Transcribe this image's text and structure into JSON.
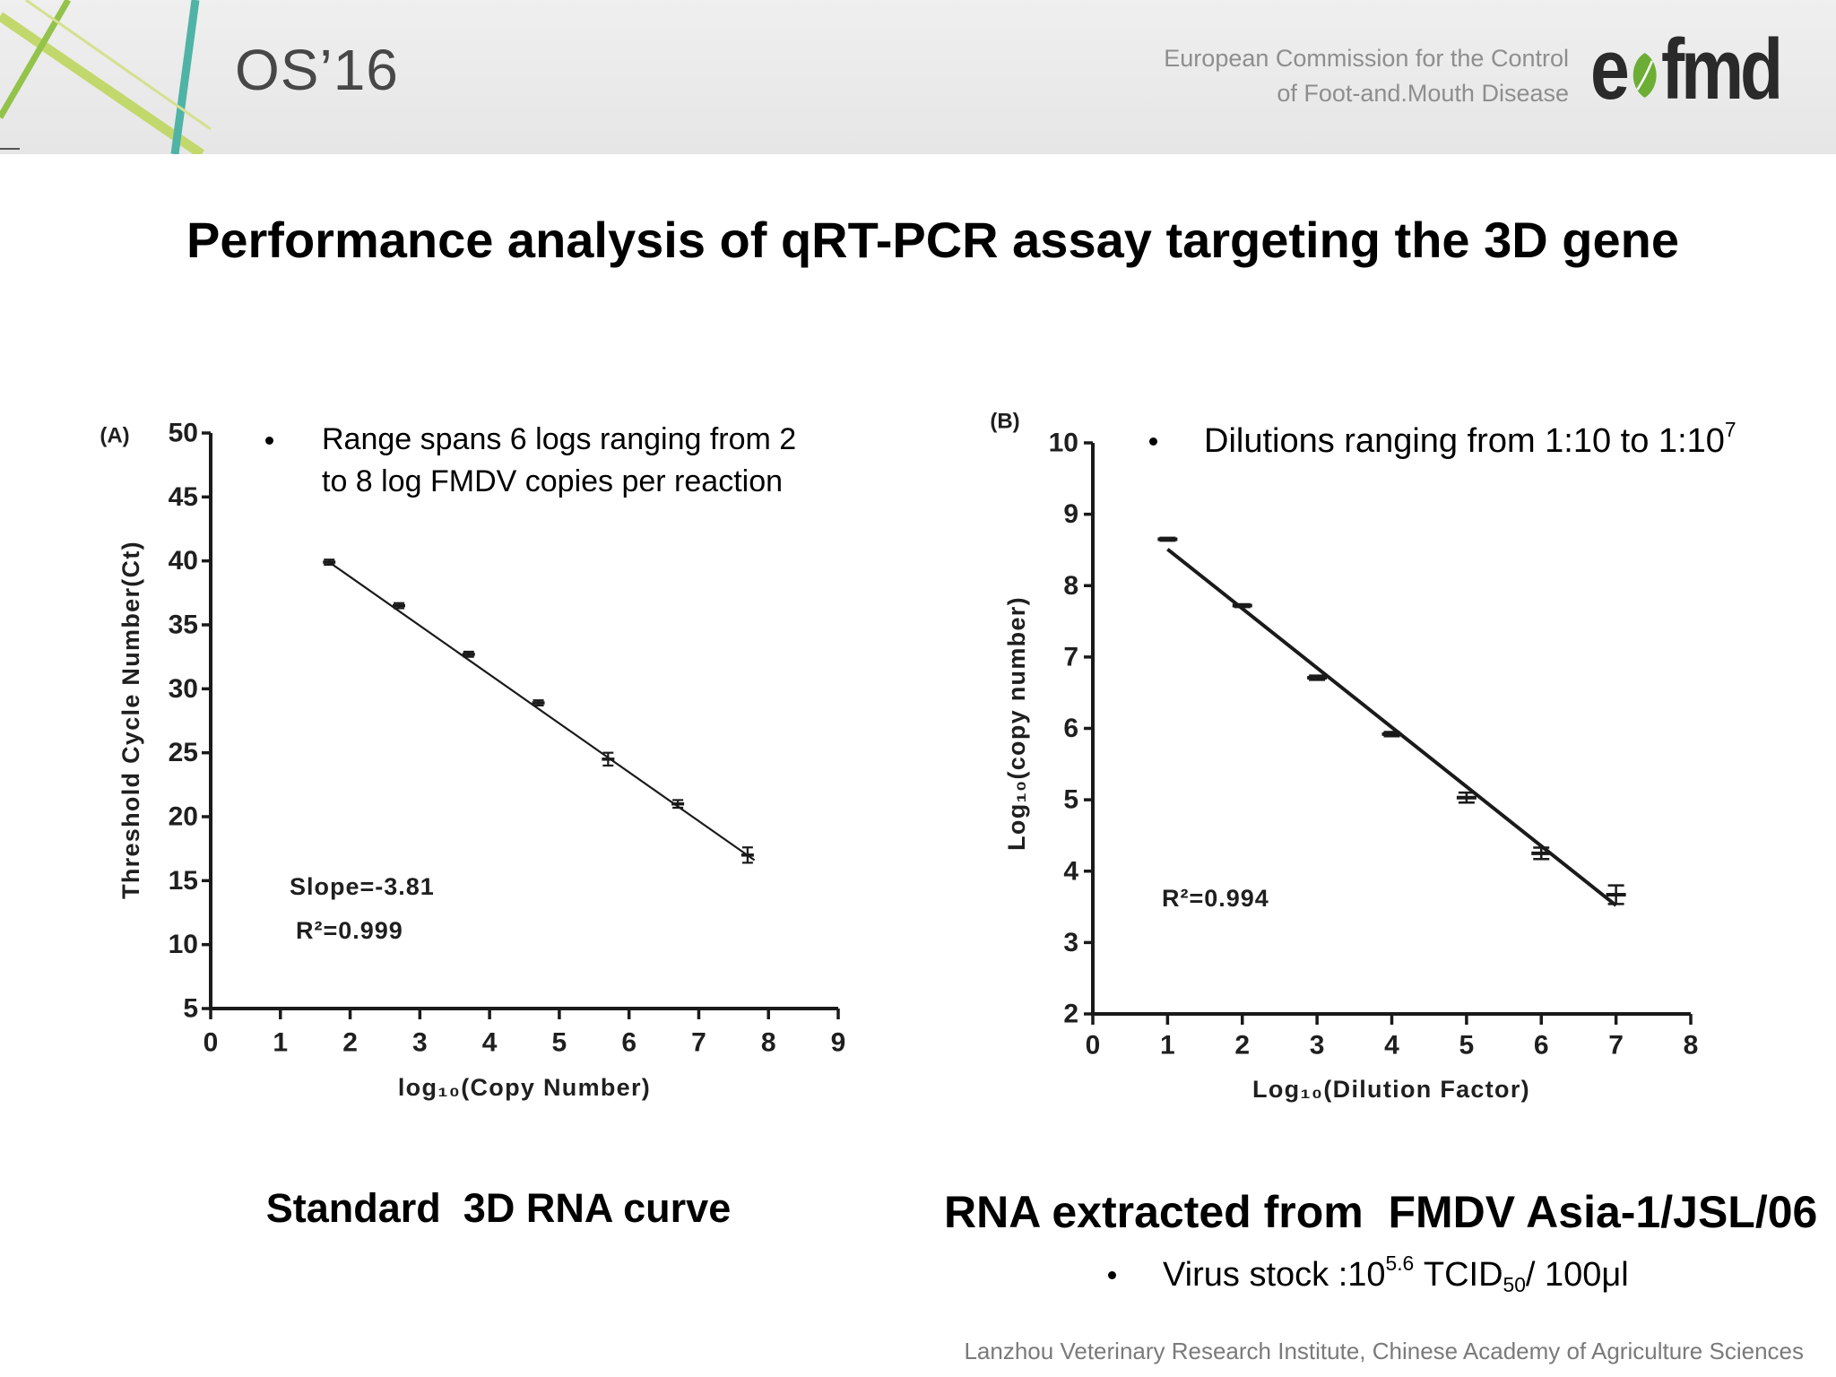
{
  "header": {
    "event": "OS’16",
    "org_line1": "European Commission for the Control",
    "org_line2": "of Foot-and.Mouth Disease",
    "logo": {
      "prefix": "e",
      "suffix": "fmd",
      "leaf_color": "#6cae35",
      "text_color": "#2a2a2a"
    },
    "decoration_colors": [
      "#c3d86c",
      "#93c34a",
      "#4fb3a6",
      "#d5e08e"
    ]
  },
  "title": "Performance analysis of qRT-PCR assay targeting the 3D gene",
  "panel_a": {
    "bullet_lines": [
      "Range spans 6 logs ranging from 2",
      "to 8 log FMDV copies per reaction"
    ],
    "caption": "Standard  3D RNA curve"
  },
  "panel_b": {
    "bullet": {
      "text": "Dilutions ranging from 1:10 to 1:10",
      "sup": "7"
    },
    "caption": "RNA extracted from  FMDV Asia-1/JSL/06",
    "note": {
      "text": "Virus stock :10",
      "sup": "5.6",
      "unit": "TCID",
      "sub": "50",
      "tail": "/ 100μl"
    }
  },
  "footer": "Lanzhou Veterinary Research Institute, Chinese Academy of Agriculture Sciences",
  "chart_data": [
    {
      "panel": "(A)",
      "type": "scatter",
      "xlabel": "log₁₀(Copy Number)",
      "ylabel": "Threshold Cycle Number(Ct)",
      "xlim": [
        0,
        9
      ],
      "ylim": [
        5,
        50
      ],
      "xticks": [
        0,
        1,
        2,
        3,
        4,
        5,
        6,
        7,
        8,
        9
      ],
      "yticks": [
        5,
        10,
        15,
        20,
        25,
        30,
        35,
        40,
        45,
        50
      ],
      "series": [
        {
          "x": [
            1.7,
            2.7,
            3.7,
            4.7,
            5.7,
            6.7,
            7.7
          ],
          "y": [
            39.9,
            36.5,
            32.7,
            28.9,
            24.5,
            21.0,
            17.0
          ],
          "error": [
            0.2,
            0.2,
            0.2,
            0.2,
            0.5,
            0.3,
            0.6
          ]
        }
      ],
      "fit_line": {
        "x": [
          1.7,
          7.8
        ],
        "y": [
          39.9,
          16.6
        ]
      },
      "annotations": [
        "Slope=-3.81",
        "R²=0.999"
      ],
      "grid": false,
      "color": "#1a1a1a"
    },
    {
      "panel": "(B)",
      "type": "scatter",
      "xlabel": "Log₁₀(Dilution Factor)",
      "ylabel": "Log₁₀(copy number)",
      "xlim": [
        0,
        8
      ],
      "ylim": [
        2,
        10
      ],
      "xticks": [
        0,
        1,
        2,
        3,
        4,
        5,
        6,
        7,
        8
      ],
      "yticks": [
        2,
        3,
        4,
        5,
        6,
        7,
        8,
        9,
        10
      ],
      "series": [
        {
          "x": [
            1,
            2,
            3,
            4,
            5,
            6,
            7
          ],
          "y": [
            8.65,
            7.72,
            6.71,
            5.92,
            5.03,
            4.25,
            3.67
          ],
          "error": [
            0.02,
            0.02,
            0.03,
            0.03,
            0.07,
            0.08,
            0.13
          ]
        }
      ],
      "fit_line": {
        "x": [
          1,
          7
        ],
        "y": [
          8.51,
          3.52
        ]
      },
      "annotations": [
        "R²=0.994"
      ],
      "grid": false,
      "color": "#1a1a1a"
    }
  ]
}
